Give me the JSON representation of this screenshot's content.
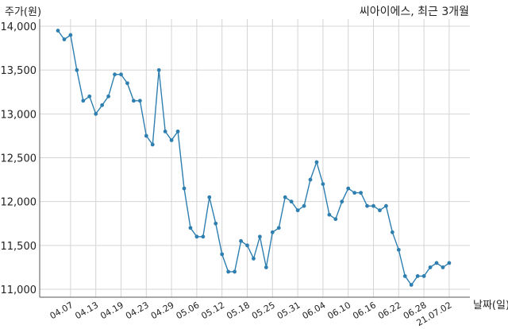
{
  "chart_data": {
    "type": "line",
    "title": "씨아이에스, 최근 3개월",
    "ylabel": "주가(원)",
    "xlabel": "날짜(일)",
    "ylim": [
      11000,
      14000
    ],
    "y_ticks": [
      11000,
      11500,
      12000,
      12500,
      13000,
      13500,
      14000
    ],
    "y_tick_labels": [
      "11,000",
      "11,500",
      "12,000",
      "12,500",
      "13,000",
      "13,500",
      "14,000"
    ],
    "x_ticks": [
      "04.07",
      "04.13",
      "04.19",
      "04.23",
      "04.29",
      "05.06",
      "05.12",
      "05.18",
      "05.25",
      "05.31",
      "06.04",
      "06.10",
      "06.16",
      "06.22",
      "06.28",
      "21.07.02"
    ],
    "x_tick_positions": [
      2,
      6,
      10,
      14,
      18,
      22,
      26,
      30,
      34,
      38,
      42,
      46,
      50,
      54,
      58,
      62
    ],
    "grid": true,
    "color": "#2e7fb0",
    "series": [
      {
        "values": [
          13950,
          13850,
          13900,
          13500,
          13150,
          13200,
          13000,
          13100,
          13200,
          13450,
          13450,
          13350,
          13150,
          13150,
          12750,
          12650,
          13500,
          12800,
          12700,
          12800,
          12150,
          11700,
          11600,
          11600,
          12050,
          11750,
          11400,
          11200,
          11200,
          11550,
          11500,
          11350,
          11600,
          11250,
          11650,
          11700,
          12050,
          12000,
          11900,
          11950,
          12250,
          12450,
          12200,
          11850,
          11800,
          12000,
          12150,
          12100,
          12100,
          11950,
          11950,
          11900,
          11950,
          11650,
          11450,
          11150,
          11050,
          11150,
          11150,
          11250,
          11300,
          11250,
          11300
        ]
      }
    ]
  }
}
